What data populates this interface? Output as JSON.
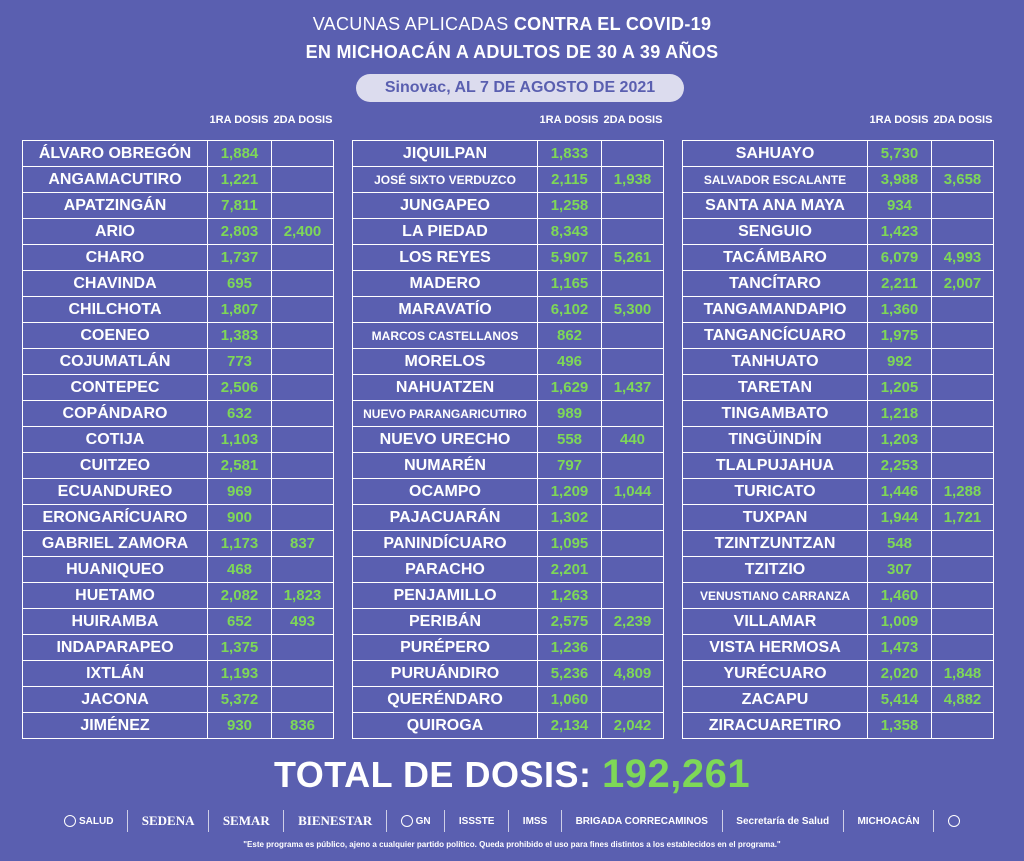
{
  "title": {
    "line1_a": "VACUNAS APLICADAS ",
    "line1_b": "CONTRA EL COVID-19",
    "line2": "EN MICHOACÁN A ADULTOS DE 30 A 39 AÑOS",
    "subtitle": "Sinovac, AL 7 DE AGOSTO DE 2021"
  },
  "headers": {
    "dose1": "1RA DOSIS",
    "dose2": "2DA DOSIS"
  },
  "columns": [
    [
      {
        "name": "ÁLVARO OBREGÓN",
        "d1": "1,884",
        "d2": ""
      },
      {
        "name": "ANGAMACUTIRO",
        "d1": "1,221",
        "d2": ""
      },
      {
        "name": "APATZINGÁN",
        "d1": "7,811",
        "d2": ""
      },
      {
        "name": "ARIO",
        "d1": "2,803",
        "d2": "2,400"
      },
      {
        "name": "CHARO",
        "d1": "1,737",
        "d2": ""
      },
      {
        "name": "CHAVINDA",
        "d1": "695",
        "d2": ""
      },
      {
        "name": "CHILCHOTA",
        "d1": "1,807",
        "d2": ""
      },
      {
        "name": "COENEO",
        "d1": "1,383",
        "d2": ""
      },
      {
        "name": "COJUMATLÁN",
        "d1": "773",
        "d2": ""
      },
      {
        "name": "CONTEPEC",
        "d1": "2,506",
        "d2": ""
      },
      {
        "name": "COPÁNDARO",
        "d1": "632",
        "d2": ""
      },
      {
        "name": "COTIJA",
        "d1": "1,103",
        "d2": ""
      },
      {
        "name": "CUITZEO",
        "d1": "2,581",
        "d2": ""
      },
      {
        "name": "ECUANDUREO",
        "d1": "969",
        "d2": ""
      },
      {
        "name": "ERONGARÍCUARO",
        "d1": "900",
        "d2": ""
      },
      {
        "name": "GABRIEL ZAMORA",
        "d1": "1,173",
        "d2": "837"
      },
      {
        "name": "HUANIQUEO",
        "d1": "468",
        "d2": ""
      },
      {
        "name": "HUETAMO",
        "d1": "2,082",
        "d2": "1,823"
      },
      {
        "name": "HUIRAMBA",
        "d1": "652",
        "d2": "493"
      },
      {
        "name": "INDAPARAPEO",
        "d1": "1,375",
        "d2": ""
      },
      {
        "name": "IXTLÁN",
        "d1": "1,193",
        "d2": ""
      },
      {
        "name": "JACONA",
        "d1": "5,372",
        "d2": ""
      },
      {
        "name": "JIMÉNEZ",
        "d1": "930",
        "d2": "836"
      }
    ],
    [
      {
        "name": "JIQUILPAN",
        "d1": "1,833",
        "d2": ""
      },
      {
        "name": "JOSÉ SIXTO VERDUZCO",
        "d1": "2,115",
        "d2": "1,938",
        "small": true
      },
      {
        "name": "JUNGAPEO",
        "d1": "1,258",
        "d2": ""
      },
      {
        "name": "LA PIEDAD",
        "d1": "8,343",
        "d2": ""
      },
      {
        "name": "LOS REYES",
        "d1": "5,907",
        "d2": "5,261"
      },
      {
        "name": "MADERO",
        "d1": "1,165",
        "d2": ""
      },
      {
        "name": "MARAVATÍO",
        "d1": "6,102",
        "d2": "5,300"
      },
      {
        "name": "MARCOS CASTELLANOS",
        "d1": "862",
        "d2": "",
        "small": true
      },
      {
        "name": "MORELOS",
        "d1": "496",
        "d2": ""
      },
      {
        "name": "NAHUATZEN",
        "d1": "1,629",
        "d2": "1,437"
      },
      {
        "name": "NUEVO PARANGARICUTIRO",
        "d1": "989",
        "d2": "",
        "small": true
      },
      {
        "name": "NUEVO URECHO",
        "d1": "558",
        "d2": "440"
      },
      {
        "name": "NUMARÉN",
        "d1": "797",
        "d2": ""
      },
      {
        "name": "OCAMPO",
        "d1": "1,209",
        "d2": "1,044"
      },
      {
        "name": "PAJACUARÁN",
        "d1": "1,302",
        "d2": ""
      },
      {
        "name": "PANINDÍCUARO",
        "d1": "1,095",
        "d2": ""
      },
      {
        "name": "PARACHO",
        "d1": "2,201",
        "d2": ""
      },
      {
        "name": "PENJAMILLO",
        "d1": "1,263",
        "d2": ""
      },
      {
        "name": "PERIBÁN",
        "d1": "2,575",
        "d2": "2,239"
      },
      {
        "name": "PURÉPERO",
        "d1": "1,236",
        "d2": ""
      },
      {
        "name": "PURUÁNDIRO",
        "d1": "5,236",
        "d2": "4,809"
      },
      {
        "name": "QUERÉNDARO",
        "d1": "1,060",
        "d2": ""
      },
      {
        "name": "QUIROGA",
        "d1": "2,134",
        "d2": "2,042"
      }
    ],
    [
      {
        "name": "SAHUAYO",
        "d1": "5,730",
        "d2": ""
      },
      {
        "name": "SALVADOR ESCALANTE",
        "d1": "3,988",
        "d2": "3,658",
        "small": true
      },
      {
        "name": "SANTA ANA MAYA",
        "d1": "934",
        "d2": ""
      },
      {
        "name": "SENGUIO",
        "d1": "1,423",
        "d2": ""
      },
      {
        "name": "TACÁMBARO",
        "d1": "6,079",
        "d2": "4,993"
      },
      {
        "name": "TANCÍTARO",
        "d1": "2,211",
        "d2": "2,007"
      },
      {
        "name": "TANGAMANDAPIO",
        "d1": "1,360",
        "d2": ""
      },
      {
        "name": "TANGANCÍCUARO",
        "d1": "1,975",
        "d2": ""
      },
      {
        "name": "TANHUATO",
        "d1": "992",
        "d2": ""
      },
      {
        "name": "TARETAN",
        "d1": "1,205",
        "d2": ""
      },
      {
        "name": "TINGAMBATO",
        "d1": "1,218",
        "d2": ""
      },
      {
        "name": "TINGÜINDÍN",
        "d1": "1,203",
        "d2": ""
      },
      {
        "name": "TLALPUJAHUA",
        "d1": "2,253",
        "d2": ""
      },
      {
        "name": "TURICATO",
        "d1": "1,446",
        "d2": "1,288"
      },
      {
        "name": "TUXPAN",
        "d1": "1,944",
        "d2": "1,721"
      },
      {
        "name": "TZINTZUNTZAN",
        "d1": "548",
        "d2": ""
      },
      {
        "name": "TZITZIO",
        "d1": "307",
        "d2": ""
      },
      {
        "name": "VENUSTIANO CARRANZA",
        "d1": "1,460",
        "d2": "",
        "small": true
      },
      {
        "name": "VILLAMAR",
        "d1": "1,009",
        "d2": ""
      },
      {
        "name": "VISTA HERMOSA",
        "d1": "1,473",
        "d2": ""
      },
      {
        "name": "YURÉCUARO",
        "d1": "2,020",
        "d2": "1,848"
      },
      {
        "name": "ZACAPU",
        "d1": "5,414",
        "d2": "4,882"
      },
      {
        "name": "ZIRACUARETIRO",
        "d1": "1,358",
        "d2": ""
      }
    ]
  ],
  "total": {
    "label": "TOTAL DE DOSIS: ",
    "value": "192,261"
  },
  "logos": {
    "salud": "SALUD",
    "sedena": "SEDENA",
    "semar": "SEMAR",
    "bienestar": "BIENESTAR",
    "gn": "GN",
    "issste": "ISSSTE",
    "imss": "IMSS",
    "brigada": "BRIGADA CORRECAMINOS",
    "secretaria": "Secretaría de Salud",
    "michoacan": "MICHOACÁN"
  },
  "footer": "\"Este programa es público, ajeno a cualquier partido político. Queda prohibido el uso para fines distintos a los establecidos en el programa.\""
}
